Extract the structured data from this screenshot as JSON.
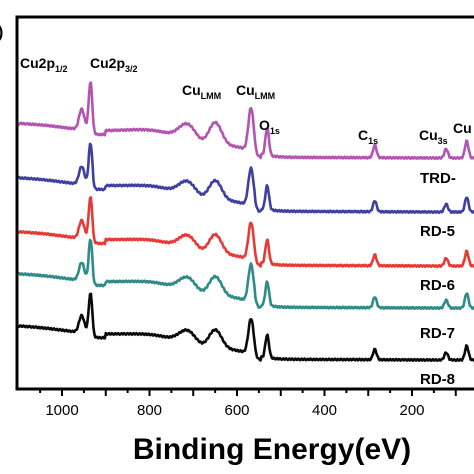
{
  "chart_data": {
    "type": "line",
    "panel_letter": ")",
    "xlabel": "Binding Energy(eV)",
    "xlim": [
      1100,
      20
    ],
    "x_reversed": true,
    "x_ticks": [
      1000,
      800,
      600,
      400,
      200
    ],
    "y_ticks_shown": false,
    "series": [
      {
        "name": "TRD-",
        "color": "#b354b3",
        "offset": 4
      },
      {
        "name": "RD-5",
        "color": "#3f3fa0",
        "offset": 3
      },
      {
        "name": "RD-6",
        "color": "#e83a34",
        "offset": 2
      },
      {
        "name": "RD-7",
        "color": "#2f8b86",
        "offset": 1
      },
      {
        "name": "RD-8",
        "color": "#0a0a0a",
        "offset": 0
      }
    ],
    "peak_labels": [
      {
        "main": "Cu2p",
        "sub": "1/2",
        "energy": 953
      },
      {
        "main": "Cu2p",
        "sub": "3/2",
        "energy": 933
      },
      {
        "main": "Cu",
        "sub": "LMM",
        "energy": 640
      },
      {
        "main": "Cu",
        "sub": "LMM",
        "energy": 570
      },
      {
        "main": "O",
        "sub": "1s",
        "energy": 531
      },
      {
        "main": "C",
        "sub": "1s",
        "energy": 285
      },
      {
        "main": "Cu",
        "sub": "3s",
        "energy": 122
      },
      {
        "main": "Cu",
        "sub": "",
        "energy": 75
      }
    ]
  }
}
